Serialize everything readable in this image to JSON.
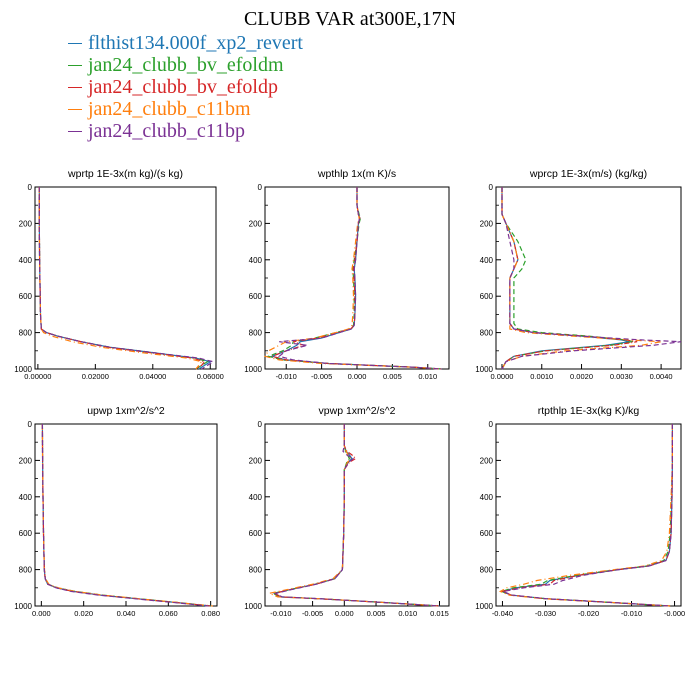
{
  "title": "CLUBB VAR at300E,17N",
  "legend": [
    {
      "name": "flthist134.000f_xp2_revert",
      "color": "#1f77b4"
    },
    {
      "name": "jan24_clubb_bv_efoldm",
      "color": "#2ca02c"
    },
    {
      "name": "jan24_clubb_bv_efoldp",
      "color": "#d62728"
    },
    {
      "name": "jan24_clubb_c11bm",
      "color": "#ff7f0e"
    },
    {
      "name": "jan24_clubb_c11bp",
      "color": "#7b3294"
    }
  ],
  "chart_data": [
    {
      "type": "line",
      "title": "wprtp  1E-3x(m kg)/(s kg)",
      "xlim": [
        -0.001,
        0.062
      ],
      "ylim": [
        1000,
        0
      ],
      "xticks": [
        "0.00000",
        "0.02000",
        "0.04000",
        "0.06000"
      ],
      "xtick_values": [
        0,
        0.02,
        0.04,
        0.06
      ],
      "yticks": [
        0,
        200,
        400,
        600,
        800,
        1000
      ],
      "y": [
        0,
        200,
        400,
        600,
        700,
        780,
        800,
        820,
        850,
        880,
        910,
        940,
        960,
        980,
        1000
      ],
      "series": [
        {
          "values": [
            0.0005,
            0.0005,
            0.0006,
            0.0008,
            0.0009,
            0.0012,
            0.003,
            0.007,
            0.015,
            0.025,
            0.04,
            0.055,
            0.06,
            0.058,
            0.056
          ]
        },
        {
          "values": [
            0.0005,
            0.0005,
            0.0006,
            0.0008,
            0.0009,
            0.0012,
            0.003,
            0.007,
            0.015,
            0.025,
            0.04,
            0.055,
            0.059,
            0.057,
            0.055
          ]
        },
        {
          "values": [
            0.0005,
            0.0005,
            0.0006,
            0.0008,
            0.0009,
            0.0012,
            0.003,
            0.007,
            0.015,
            0.024,
            0.039,
            0.054,
            0.058,
            0.057,
            0.055
          ]
        },
        {
          "values": [
            0.0005,
            0.0005,
            0.0006,
            0.0008,
            0.0009,
            0.0012,
            0.002,
            0.005,
            0.012,
            0.022,
            0.036,
            0.052,
            0.057,
            0.056,
            0.055
          ]
        },
        {
          "values": [
            0.0005,
            0.0005,
            0.0006,
            0.0008,
            0.0009,
            0.0012,
            0.003,
            0.007,
            0.015,
            0.025,
            0.04,
            0.056,
            0.061,
            0.059,
            0.057
          ]
        }
      ]
    },
    {
      "type": "line",
      "title": "wpthlp  1x(m K)/s",
      "xlim": [
        -0.013,
        0.013
      ],
      "ylim": [
        1000,
        0
      ],
      "xticks": [
        "-0.010",
        "-0.005",
        "0.000",
        "0.005",
        "0.010"
      ],
      "xtick_values": [
        -0.01,
        -0.005,
        0,
        0.005,
        0.01
      ],
      "yticks": [
        0,
        200,
        400,
        600,
        800,
        1000
      ],
      "y": [
        0,
        100,
        150,
        170,
        200,
        300,
        400,
        450,
        500,
        600,
        700,
        760,
        780,
        800,
        830,
        850,
        870,
        900,
        930,
        950,
        970,
        990,
        1000
      ],
      "series": [
        {
          "values": [
            0.0,
            0.0,
            0.0002,
            0.0004,
            0.0002,
            0.0,
            -0.0002,
            -0.0004,
            -0.0003,
            -0.0002,
            -0.0003,
            -0.0004,
            -0.0008,
            -0.0025,
            -0.005,
            -0.008,
            -0.0085,
            -0.01,
            -0.012,
            -0.01,
            -0.004,
            0.008,
            0.012
          ]
        },
        {
          "values": [
            0.0,
            0.0,
            0.0003,
            0.0005,
            0.0003,
            0.0,
            -0.0004,
            -0.0006,
            -0.0005,
            -0.0004,
            -0.0004,
            -0.0005,
            -0.001,
            -0.003,
            -0.006,
            -0.009,
            -0.0092,
            -0.0105,
            -0.0125,
            -0.0105,
            -0.004,
            0.008,
            0.012
          ]
        },
        {
          "values": [
            0.0,
            0.0,
            0.0002,
            0.0004,
            0.0002,
            0.0,
            -0.0003,
            -0.0005,
            -0.0004,
            -0.0003,
            -0.0003,
            -0.0004,
            -0.0009,
            -0.0028,
            -0.0055,
            -0.009,
            -0.0075,
            -0.01,
            -0.012,
            -0.01,
            -0.004,
            0.008,
            0.012
          ]
        },
        {
          "values": [
            0.0,
            0.0,
            0.0002,
            0.0003,
            0.0001,
            -0.0002,
            -0.0005,
            -0.0007,
            -0.0006,
            -0.0005,
            -0.0006,
            -0.0007,
            -0.0012,
            -0.003,
            -0.006,
            -0.01,
            -0.011,
            -0.0125,
            -0.013,
            -0.011,
            -0.005,
            0.008,
            0.012
          ]
        },
        {
          "values": [
            0.0,
            0.0,
            0.0002,
            0.0004,
            0.0002,
            0.0,
            -0.0002,
            -0.0004,
            -0.0003,
            -0.0002,
            -0.0003,
            -0.0004,
            -0.0008,
            -0.0025,
            -0.005,
            -0.011,
            -0.007,
            -0.01,
            -0.011,
            -0.009,
            -0.004,
            0.008,
            0.012
          ]
        }
      ]
    },
    {
      "type": "line",
      "title": "wprcp  1E-3x(m/s) (kg/kg)",
      "xlim": [
        -0.00015,
        0.0045
      ],
      "ylim": [
        1000,
        0
      ],
      "xticks": [
        "0.0000",
        "0.0010",
        "0.0020",
        "0.0030",
        "0.0040"
      ],
      "xtick_values": [
        0,
        0.001,
        0.002,
        0.003,
        0.004
      ],
      "yticks": [
        0,
        200,
        400,
        600,
        800,
        1000
      ],
      "y": [
        0,
        150,
        200,
        300,
        400,
        450,
        500,
        600,
        700,
        750,
        780,
        800,
        820,
        840,
        850,
        870,
        900,
        930,
        960,
        1000
      ],
      "series": [
        {
          "values": [
            0.0,
            0.0,
            0.0001,
            0.0003,
            0.0004,
            0.0003,
            0.0002,
            0.0002,
            0.0002,
            0.0002,
            0.0003,
            0.0008,
            0.002,
            0.003,
            0.0032,
            0.0026,
            0.001,
            0.0003,
            0.0001,
            0.0
          ]
        },
        {
          "values": [
            0.0,
            0.0,
            0.0001,
            0.0004,
            0.0006,
            0.0005,
            0.0003,
            0.0003,
            0.0003,
            0.0003,
            0.0004,
            0.001,
            0.0022,
            0.0031,
            0.0033,
            0.0027,
            0.0011,
            0.0003,
            0.0001,
            0.0
          ]
        },
        {
          "values": [
            0.0,
            0.0,
            0.0001,
            0.0003,
            0.0004,
            0.0003,
            0.0002,
            0.0002,
            0.0002,
            0.0002,
            0.0003,
            0.0008,
            0.0021,
            0.0031,
            0.0034,
            0.0028,
            0.0011,
            0.0003,
            0.0001,
            0.0
          ]
        },
        {
          "values": [
            0.0,
            0.0,
            0.0001,
            0.0003,
            0.0004,
            0.0003,
            0.0002,
            0.0002,
            0.0002,
            0.0002,
            0.0002,
            0.0006,
            0.0018,
            0.0032,
            0.004,
            0.0035,
            0.0016,
            0.0005,
            0.0001,
            0.0
          ]
        },
        {
          "values": [
            0.0,
            0.0,
            0.0001,
            0.0002,
            0.0003,
            0.0003,
            0.0002,
            0.0002,
            0.0002,
            0.0002,
            0.0003,
            0.0008,
            0.002,
            0.0035,
            0.0045,
            0.0038,
            0.0018,
            0.0005,
            0.0001,
            0.0
          ]
        }
      ]
    },
    {
      "type": "line",
      "title": "upwp  1xm^2/s^2",
      "xlim": [
        -0.003,
        0.083
      ],
      "ylim": [
        1000,
        0
      ],
      "xticks": [
        "0.000",
        "0.020",
        "0.040",
        "0.060",
        "0.080"
      ],
      "xtick_values": [
        0,
        0.02,
        0.04,
        0.06,
        0.08
      ],
      "yticks": [
        0,
        200,
        400,
        600,
        800,
        1000
      ],
      "y": [
        0,
        200,
        400,
        600,
        700,
        800,
        850,
        880,
        900,
        920,
        940,
        960,
        980,
        1000
      ],
      "series": [
        {
          "values": [
            0.0005,
            0.0006,
            0.0008,
            0.001,
            0.0012,
            0.0014,
            0.0018,
            0.003,
            0.007,
            0.015,
            0.028,
            0.045,
            0.063,
            0.08
          ]
        },
        {
          "values": [
            0.0005,
            0.0006,
            0.0008,
            0.001,
            0.0012,
            0.0014,
            0.0018,
            0.0032,
            0.0075,
            0.016,
            0.029,
            0.046,
            0.064,
            0.08
          ]
        },
        {
          "values": [
            0.0005,
            0.0006,
            0.0008,
            0.001,
            0.0012,
            0.0014,
            0.0018,
            0.003,
            0.007,
            0.015,
            0.028,
            0.045,
            0.063,
            0.08
          ]
        },
        {
          "values": [
            0.0005,
            0.0006,
            0.0008,
            0.001,
            0.0012,
            0.0015,
            0.002,
            0.0035,
            0.008,
            0.016,
            0.029,
            0.046,
            0.064,
            0.081
          ]
        },
        {
          "values": [
            0.0005,
            0.0006,
            0.0008,
            0.001,
            0.0012,
            0.0014,
            0.0018,
            0.003,
            0.007,
            0.014,
            0.027,
            0.044,
            0.062,
            0.079
          ]
        }
      ]
    },
    {
      "type": "line",
      "title": "vpwp  1xm^2/s^2",
      "xlim": [
        -0.0125,
        0.0165
      ],
      "ylim": [
        1000,
        0
      ],
      "xticks": [
        "-0.010",
        "-0.005",
        "0.000",
        "0.005",
        "0.010",
        "0.015"
      ],
      "xtick_values": [
        -0.01,
        -0.005,
        0,
        0.005,
        0.01,
        0.015
      ],
      "yticks": [
        0,
        200,
        400,
        600,
        800,
        1000
      ],
      "y": [
        0,
        120,
        150,
        170,
        190,
        210,
        250,
        400,
        600,
        800,
        850,
        880,
        910,
        930,
        950,
        960,
        980,
        1000
      ],
      "series": [
        {
          "values": [
            0.0,
            0.0,
            0.0003,
            0.0008,
            0.0012,
            0.0006,
            0.0,
            0.0,
            -0.0001,
            -0.0003,
            -0.0015,
            -0.0045,
            -0.0085,
            -0.011,
            -0.01,
            -0.004,
            0.006,
            0.015
          ]
        },
        {
          "values": [
            0.0,
            0.0,
            0.0002,
            0.0005,
            0.0008,
            0.0004,
            0.0,
            0.0,
            -0.0001,
            -0.0003,
            -0.0016,
            -0.0046,
            -0.0086,
            -0.0112,
            -0.0102,
            -0.004,
            0.006,
            0.015
          ]
        },
        {
          "values": [
            0.0,
            0.0,
            0.0004,
            0.0012,
            0.0018,
            0.0008,
            0.0,
            0.0,
            -0.0001,
            -0.0003,
            -0.0015,
            -0.0045,
            -0.0085,
            -0.011,
            -0.01,
            -0.004,
            0.006,
            0.015
          ]
        },
        {
          "values": [
            0.0,
            0.0,
            0.0003,
            0.0006,
            0.001,
            0.0005,
            0.0,
            0.0,
            -0.0001,
            -0.0003,
            -0.0018,
            -0.005,
            -0.009,
            -0.0118,
            -0.0105,
            -0.004,
            0.006,
            0.015
          ]
        },
        {
          "values": [
            0.0,
            0.0,
            -0.0002,
            0.0004,
            0.0014,
            0.0007,
            0.0,
            0.0,
            -0.0001,
            -0.0003,
            -0.0015,
            -0.0044,
            -0.0083,
            -0.0108,
            -0.0098,
            -0.004,
            0.006,
            0.015
          ]
        }
      ]
    },
    {
      "type": "line",
      "title": "rtpthlp  1E-3x(kg K)/kg",
      "xlim": [
        -0.0415,
        0.0015
      ],
      "ylim": [
        1000,
        0
      ],
      "xticks": [
        "-0.040",
        "-0.030",
        "-0.020",
        "-0.010",
        "-0.000"
      ],
      "xtick_values": [
        -0.04,
        -0.03,
        -0.02,
        -0.01,
        0
      ],
      "yticks": [
        0,
        200,
        400,
        600,
        800,
        1000
      ],
      "y": [
        0,
        200,
        400,
        600,
        700,
        750,
        780,
        800,
        830,
        860,
        880,
        900,
        920,
        940,
        960,
        980,
        1000
      ],
      "series": [
        {
          "values": [
            -0.0005,
            -0.0005,
            -0.0006,
            -0.0008,
            -0.0012,
            -0.002,
            -0.006,
            -0.013,
            -0.022,
            -0.029,
            -0.03,
            -0.037,
            -0.04,
            -0.038,
            -0.03,
            -0.015,
            -0.001
          ]
        },
        {
          "values": [
            -0.0005,
            -0.0005,
            -0.0007,
            -0.001,
            -0.0015,
            -0.0025,
            -0.0065,
            -0.0135,
            -0.0225,
            -0.0295,
            -0.031,
            -0.0375,
            -0.0402,
            -0.0382,
            -0.03,
            -0.015,
            -0.001
          ]
        },
        {
          "values": [
            -0.0005,
            -0.0005,
            -0.0006,
            -0.0008,
            -0.0012,
            -0.002,
            -0.006,
            -0.013,
            -0.022,
            -0.028,
            -0.029,
            -0.036,
            -0.04,
            -0.038,
            -0.03,
            -0.015,
            -0.001
          ]
        },
        {
          "values": [
            -0.0005,
            -0.0005,
            -0.0008,
            -0.0012,
            -0.0018,
            -0.003,
            -0.007,
            -0.014,
            -0.024,
            -0.032,
            -0.035,
            -0.039,
            -0.0405,
            -0.0385,
            -0.0305,
            -0.015,
            -0.001
          ]
        },
        {
          "values": [
            -0.0005,
            -0.0005,
            -0.0006,
            -0.0008,
            -0.0012,
            -0.002,
            -0.006,
            -0.013,
            -0.021,
            -0.026,
            -0.028,
            -0.035,
            -0.0398,
            -0.0378,
            -0.0298,
            -0.015,
            -0.001
          ]
        }
      ]
    }
  ]
}
